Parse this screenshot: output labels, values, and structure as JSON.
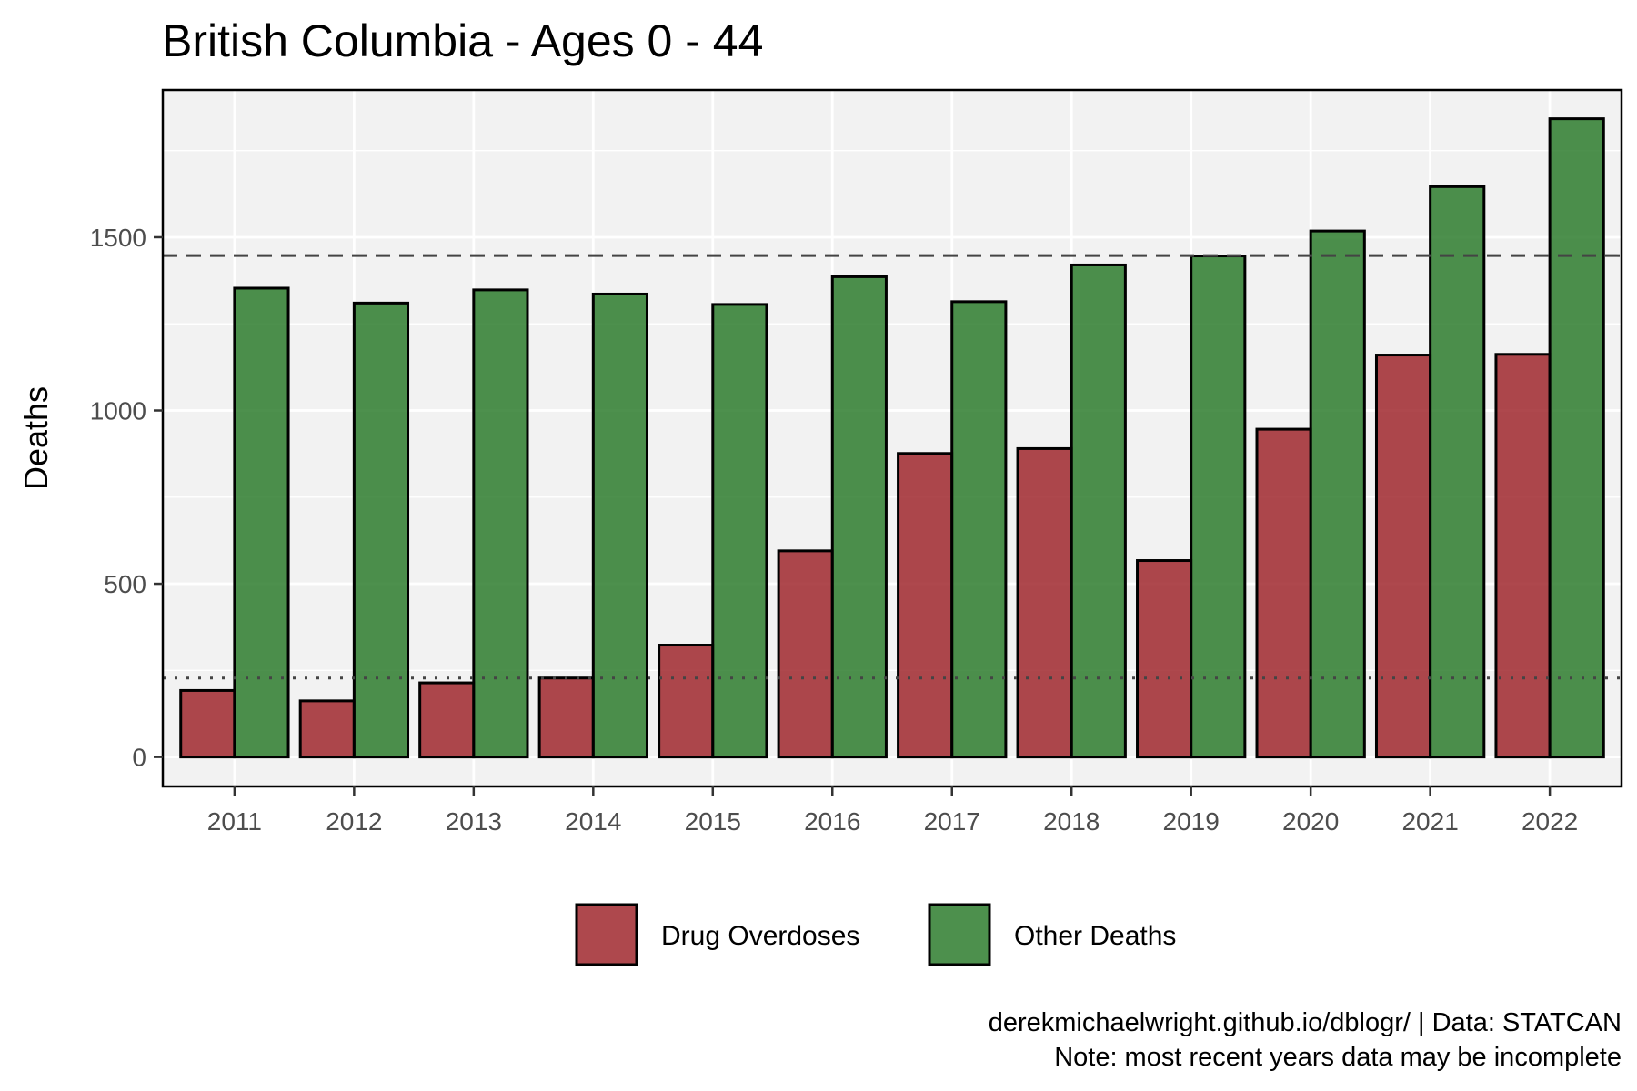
{
  "chart_data": {
    "type": "bar",
    "title": "British Columbia - Ages 0 - 44",
    "xlabel": "",
    "ylabel": "Deaths",
    "categories": [
      "2011",
      "2012",
      "2013",
      "2014",
      "2015",
      "2016",
      "2017",
      "2018",
      "2019",
      "2020",
      "2021",
      "2022"
    ],
    "series": [
      {
        "name": "Drug Overdoses",
        "color": "#a0282e",
        "values": [
          192,
          162,
          214,
          228,
          323,
          595,
          876,
          890,
          567,
          946,
          1160,
          1162
        ]
      },
      {
        "name": "Other Deaths",
        "color": "#2e7d2e",
        "values": [
          1353,
          1310,
          1348,
          1336,
          1306,
          1386,
          1314,
          1420,
          1446,
          1518,
          1646,
          1842
        ]
      }
    ],
    "ylim": [
      -85,
      1925
    ],
    "yticks": [
      "0",
      "500",
      "1000",
      "1500"
    ],
    "reference_lines": [
      {
        "style": "dashed",
        "value": 1447
      },
      {
        "style": "dotted",
        "value": 228
      }
    ],
    "grid": true,
    "legend_position": "bottom",
    "caption": [
      "derekmichaelwright.github.io/dblogr/ | Data: STATCAN",
      "Note: most recent years data may be incomplete"
    ]
  }
}
